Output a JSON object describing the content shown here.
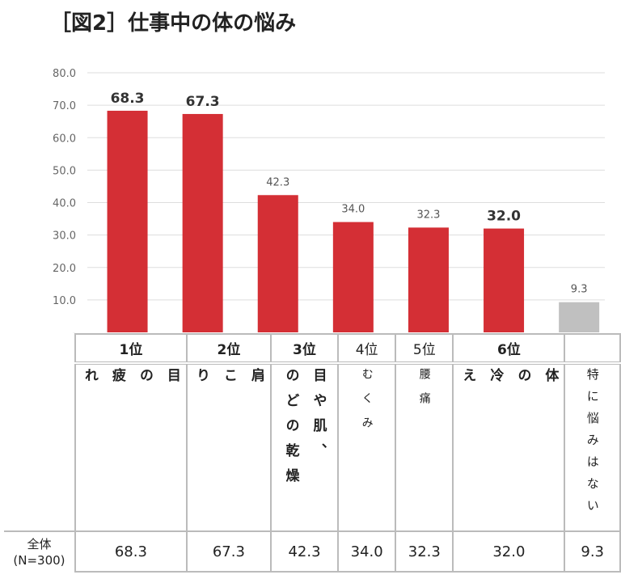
{
  "title": "［図2］仕事中の体の悩み",
  "chart_data": {
    "type": "bar",
    "categories": [
      "目の疲れ",
      "肩こり",
      "目や肌、のどの乾燥",
      "むくみ",
      "腰痛",
      "体の冷え",
      "特に悩みはない"
    ],
    "values": [
      68.3,
      67.3,
      42.3,
      34.0,
      32.3,
      32.0,
      9.3
    ],
    "ylim": [
      0,
      80
    ],
    "yticks": [
      "-",
      "10.0",
      "20.0",
      "30.0",
      "40.0",
      "50.0",
      "60.0",
      "70.0",
      "80.0"
    ],
    "grid": true,
    "colors": [
      "#d42f35",
      "#d42f35",
      "#d42f35",
      "#d42f35",
      "#d42f35",
      "#d42f35",
      "#c0c0c0"
    ],
    "bold_labels": [
      true,
      true,
      false,
      false,
      false,
      true,
      false
    ]
  },
  "table": {
    "ranks": [
      "1位",
      "2位",
      "3位",
      "4位",
      "5位",
      "6位",
      ""
    ],
    "labels": [
      "目\nの\n疲\nれ",
      "肩\nこ\nり",
      "目や肌、\nのどの乾燥",
      "むくみ",
      "腰痛",
      "体\nの\n冷\nえ",
      "特に悩みはない"
    ],
    "row_header_1": "全体",
    "row_header_2": "(N=300)",
    "totals": [
      "68.3",
      "67.3",
      "42.3",
      "34.0",
      "32.3",
      "32.0",
      "9.3"
    ]
  }
}
